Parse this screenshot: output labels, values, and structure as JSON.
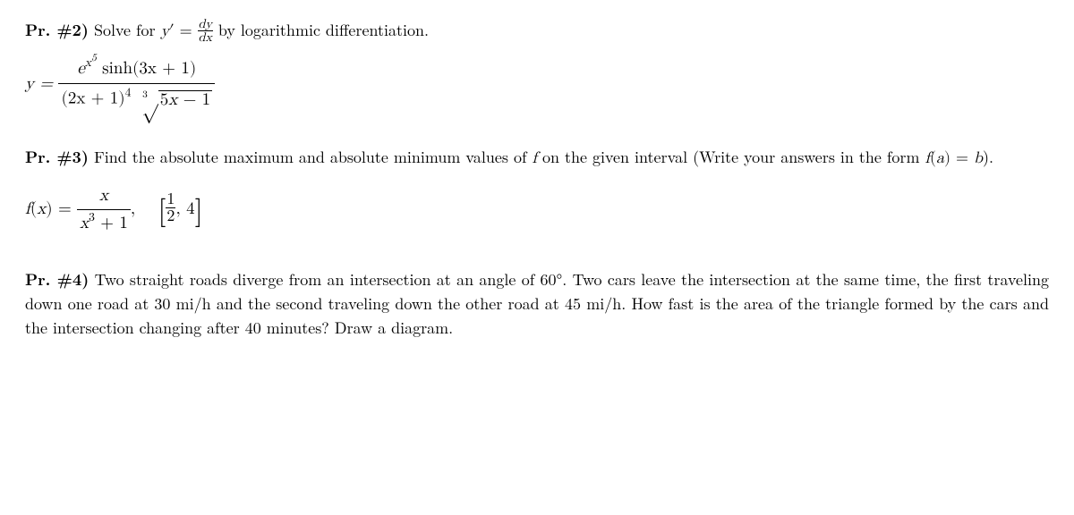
{
  "p2": {
    "header": "Pr. #2)",
    "intro_a": " Solve for ",
    "yprime": "y",
    "prime": "′",
    "eq": " = ",
    "dy": "dy",
    "dx": "dx",
    "intro_b": " by logarithmic differentiation.",
    "eq_lhs": "y = ",
    "num_e": "e",
    "num_x": "x",
    "num_exp5": "5",
    "sinh": " sinh",
    "num_arg": "(3x + 1)",
    "den_a": "(2x + 1)",
    "den_pow": "4",
    "root_idx": "3",
    "radicand": "5x − 1"
  },
  "p3": {
    "header": "Pr. #3)",
    "text_a": " Find the absolute maximum and absolute minimum values of ",
    "f": "f",
    "text_b": " on the given interval (Write your answers in the form ",
    "form": "f(a) = b",
    "text_c": ").",
    "fx": "f(x) = ",
    "num": "x",
    "den_a": "x",
    "den_pow": "3",
    "den_b": " + 1",
    "comma": ",",
    "lb": "[",
    "rb": "]",
    "half_num": "1",
    "half_den": "2",
    "four": "4"
  },
  "p4": {
    "header": "Pr. #4)",
    "text": " Two straight roads diverge from an intersection at an angle of 60°. Two cars leave the intersection at the same time, the first traveling down one road at 30 mi/h and the second traveling down the other road at 45 mi/h. How fast is the area of the triangle formed by the cars and the intersection changing after 40 minutes? Draw a diagram."
  }
}
